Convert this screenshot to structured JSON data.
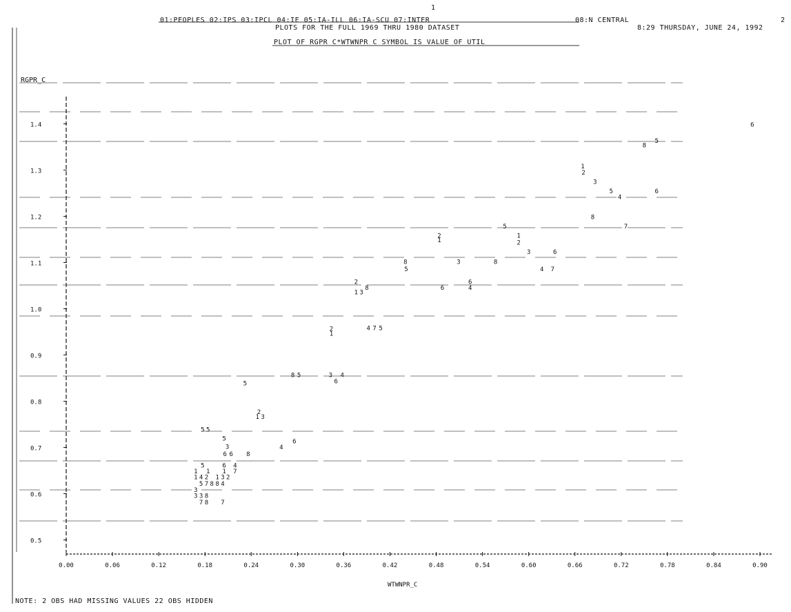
{
  "header": {
    "page_marker": "1",
    "page_number": "2",
    "groups_line": "01:PEOPLES 02:IPS 03:IPCL 04:IE 05:IA-ILL 06:IA-SCU 07:INTER",
    "group8": "08:N CENTRAL",
    "subtitle": "PLOTS FOR THE FULL 1969 THRU 1980 DATASET",
    "timestamp": "8:29 THURSDAY, JUNE 24, 1992",
    "plot_title": "PLOT OF RGPR_C*WTWNPR_C     SYMBOL IS VALUE OF UTIL"
  },
  "footer": {
    "note": "NOTE:     2 OBS HAD MISSING VALUES     22 OBS HIDDEN"
  },
  "chart_data": {
    "type": "scatter",
    "title": "PLOT OF RGPR_C*WTWNPR_C",
    "xlabel": "WTWNPR_C",
    "ylabel": "RGPR_C",
    "xlim": [
      0.0,
      0.9
    ],
    "ylim": [
      0.45,
      1.45
    ],
    "xticks": [
      "0.00",
      "0.06",
      "0.12",
      "0.18",
      "0.24",
      "0.30",
      "0.36",
      "0.42",
      "0.48",
      "0.54",
      "0.60",
      "0.66",
      "0.72",
      "0.78",
      "0.84",
      "0.90"
    ],
    "yticks": [
      "0.5",
      "0.6",
      "0.7",
      "0.8",
      "0.9",
      "1.0",
      "1.1",
      "1.2",
      "1.3",
      "1.4"
    ],
    "points": [
      {
        "x": 0.89,
        "y": 1.4,
        "label": "6"
      },
      {
        "x": 0.766,
        "y": 1.365,
        "label": "5"
      },
      {
        "x": 0.75,
        "y": 1.355,
        "label": "8"
      },
      {
        "x": 0.67,
        "y": 1.31,
        "label": "1"
      },
      {
        "x": 0.671,
        "y": 1.296,
        "label": "2"
      },
      {
        "x": 0.686,
        "y": 1.276,
        "label": "3"
      },
      {
        "x": 0.707,
        "y": 1.256,
        "label": "5"
      },
      {
        "x": 0.718,
        "y": 1.243,
        "label": "4"
      },
      {
        "x": 0.766,
        "y": 1.256,
        "label": "6"
      },
      {
        "x": 0.683,
        "y": 1.2,
        "label": "8"
      },
      {
        "x": 0.726,
        "y": 1.18,
        "label": "7"
      },
      {
        "x": 0.569,
        "y": 1.18,
        "label": "5"
      },
      {
        "x": 0.484,
        "y": 1.16,
        "label": "2"
      },
      {
        "x": 0.484,
        "y": 1.15,
        "label": "1"
      },
      {
        "x": 0.587,
        "y": 1.16,
        "label": "1"
      },
      {
        "x": 0.587,
        "y": 1.145,
        "label": "2"
      },
      {
        "x": 0.6,
        "y": 1.125,
        "label": "3"
      },
      {
        "x": 0.634,
        "y": 1.125,
        "label": "6"
      },
      {
        "x": 0.44,
        "y": 1.103,
        "label": "8"
      },
      {
        "x": 0.509,
        "y": 1.103,
        "label": "3"
      },
      {
        "x": 0.557,
        "y": 1.103,
        "label": "8"
      },
      {
        "x": 0.441,
        "y": 1.087,
        "label": "5"
      },
      {
        "x": 0.617,
        "y": 1.087,
        "label": "4"
      },
      {
        "x": 0.631,
        "y": 1.087,
        "label": "7"
      },
      {
        "x": 0.376,
        "y": 1.06,
        "label": "2"
      },
      {
        "x": 0.39,
        "y": 1.047,
        "label": "8"
      },
      {
        "x": 0.376,
        "y": 1.037,
        "label": "1"
      },
      {
        "x": 0.383,
        "y": 1.037,
        "label": "3"
      },
      {
        "x": 0.524,
        "y": 1.06,
        "label": "6"
      },
      {
        "x": 0.488,
        "y": 1.047,
        "label": "6"
      },
      {
        "x": 0.524,
        "y": 1.047,
        "label": "4"
      },
      {
        "x": 0.344,
        "y": 0.958,
        "label": "2"
      },
      {
        "x": 0.344,
        "y": 0.948,
        "label": "1"
      },
      {
        "x": 0.392,
        "y": 0.96,
        "label": "4"
      },
      {
        "x": 0.4,
        "y": 0.96,
        "label": "7"
      },
      {
        "x": 0.408,
        "y": 0.96,
        "label": "5"
      },
      {
        "x": 0.294,
        "y": 0.858,
        "label": "8"
      },
      {
        "x": 0.302,
        "y": 0.858,
        "label": "5"
      },
      {
        "x": 0.343,
        "y": 0.858,
        "label": "3"
      },
      {
        "x": 0.358,
        "y": 0.858,
        "label": "4"
      },
      {
        "x": 0.35,
        "y": 0.845,
        "label": "6"
      },
      {
        "x": 0.232,
        "y": 0.84,
        "label": "5"
      },
      {
        "x": 0.25,
        "y": 0.778,
        "label": "2"
      },
      {
        "x": 0.248,
        "y": 0.768,
        "label": "1"
      },
      {
        "x": 0.255,
        "y": 0.768,
        "label": "3"
      },
      {
        "x": 0.177,
        "y": 0.74,
        "label": "5"
      },
      {
        "x": 0.184,
        "y": 0.74,
        "label": "5"
      },
      {
        "x": 0.205,
        "y": 0.721,
        "label": "5"
      },
      {
        "x": 0.296,
        "y": 0.715,
        "label": "6"
      },
      {
        "x": 0.209,
        "y": 0.703,
        "label": "3"
      },
      {
        "x": 0.279,
        "y": 0.702,
        "label": "4"
      },
      {
        "x": 0.206,
        "y": 0.687,
        "label": "6"
      },
      {
        "x": 0.214,
        "y": 0.687,
        "label": "6"
      },
      {
        "x": 0.236,
        "y": 0.687,
        "label": "8"
      },
      {
        "x": 0.177,
        "y": 0.663,
        "label": "5"
      },
      {
        "x": 0.205,
        "y": 0.663,
        "label": "6"
      },
      {
        "x": 0.219,
        "y": 0.663,
        "label": "4"
      },
      {
        "x": 0.168,
        "y": 0.65,
        "label": "1"
      },
      {
        "x": 0.184,
        "y": 0.65,
        "label": "1"
      },
      {
        "x": 0.205,
        "y": 0.65,
        "label": "1"
      },
      {
        "x": 0.219,
        "y": 0.65,
        "label": "7"
      },
      {
        "x": 0.168,
        "y": 0.637,
        "label": "1"
      },
      {
        "x": 0.175,
        "y": 0.637,
        "label": "4"
      },
      {
        "x": 0.182,
        "y": 0.637,
        "label": "2"
      },
      {
        "x": 0.196,
        "y": 0.637,
        "label": "1"
      },
      {
        "x": 0.203,
        "y": 0.637,
        "label": "3"
      },
      {
        "x": 0.21,
        "y": 0.637,
        "label": "2"
      },
      {
        "x": 0.175,
        "y": 0.623,
        "label": "5"
      },
      {
        "x": 0.182,
        "y": 0.623,
        "label": "7"
      },
      {
        "x": 0.189,
        "y": 0.623,
        "label": "8"
      },
      {
        "x": 0.196,
        "y": 0.623,
        "label": "8"
      },
      {
        "x": 0.203,
        "y": 0.623,
        "label": "4"
      },
      {
        "x": 0.168,
        "y": 0.61,
        "label": "3"
      },
      {
        "x": 0.168,
        "y": 0.597,
        "label": "3"
      },
      {
        "x": 0.175,
        "y": 0.597,
        "label": "3"
      },
      {
        "x": 0.182,
        "y": 0.597,
        "label": "8"
      },
      {
        "x": 0.175,
        "y": 0.583,
        "label": "7"
      },
      {
        "x": 0.182,
        "y": 0.583,
        "label": "8"
      },
      {
        "x": 0.203,
        "y": 0.583,
        "label": "7"
      }
    ]
  }
}
